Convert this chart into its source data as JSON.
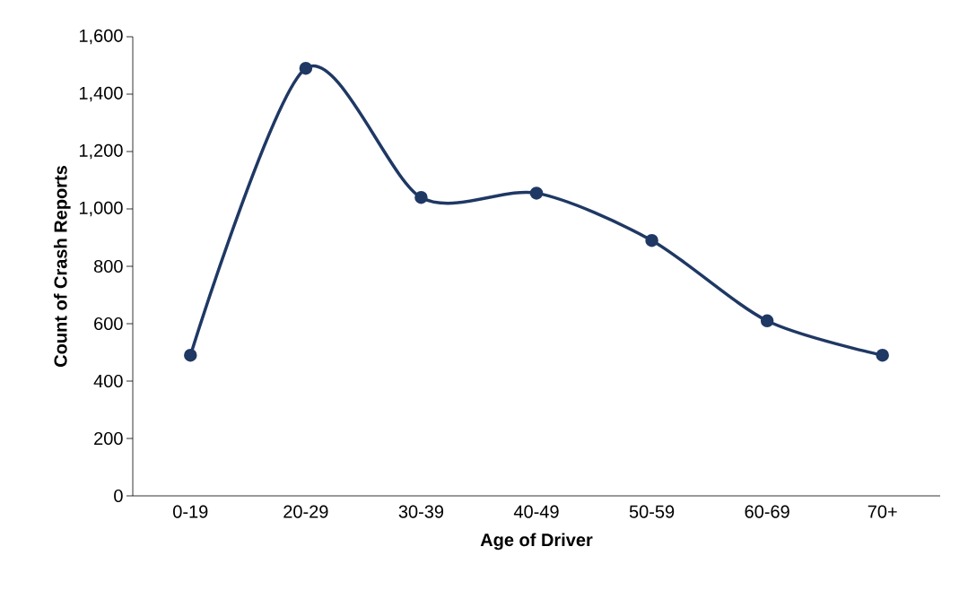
{
  "chart_data": {
    "type": "line",
    "xlabel": "Age of Driver",
    "ylabel": "Count of Crash Reports",
    "categories": [
      "0-19",
      "20-29",
      "30-39",
      "40-49",
      "50-59",
      "60-69",
      "70+"
    ],
    "values": [
      490,
      1490,
      1040,
      1055,
      890,
      610,
      490
    ],
    "color": "#1f3864",
    "marker": "circle",
    "line_style": "solid",
    "ylim": [
      0,
      1600
    ],
    "yticks": [
      0,
      200,
      400,
      600,
      800,
      {
        "value": 1000,
        "label": "1,000"
      },
      {
        "value": 1200,
        "label": "1,200"
      },
      {
        "value": 1400,
        "label": "1,400"
      },
      {
        "value": 1600,
        "label": "1,600"
      }
    ]
  }
}
